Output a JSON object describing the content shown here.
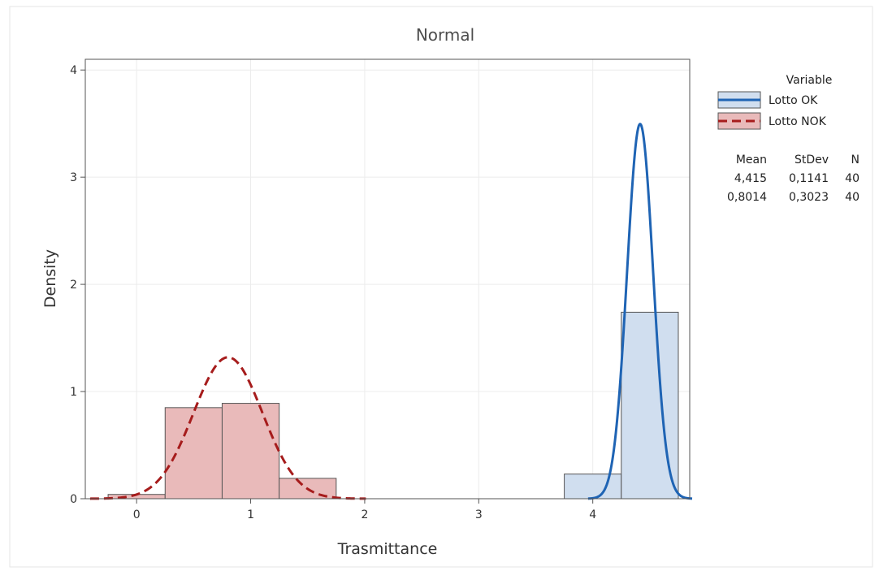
{
  "chart_data": {
    "type": "histogram",
    "title": "Normal",
    "xlabel": "Trasmittance",
    "ylabel": "Density",
    "xlim": [
      -0.45,
      4.85
    ],
    "ylim": [
      0,
      4.1
    ],
    "xticks": [
      0,
      1,
      2,
      3,
      4
    ],
    "yticks": [
      0,
      1,
      2,
      3,
      4
    ],
    "grid": true,
    "legend": {
      "title": "Variable",
      "placement": "right",
      "entries": [
        "Lotto OK",
        "Lotto NOK"
      ]
    },
    "stats_table": {
      "headers": [
        "Mean",
        "StDev",
        "N"
      ],
      "rows": [
        [
          "4,415",
          "0,1141",
          "40"
        ],
        [
          "0,8014",
          "0,3023",
          "40"
        ]
      ]
    },
    "series": [
      {
        "name": "Lotto OK",
        "color": "#1f64b4",
        "fill": "#d0deef",
        "line_style": "solid",
        "mean": 4.415,
        "stdev": 0.1141,
        "n": 40,
        "bins": [
          {
            "x0": 3.75,
            "x1": 4.25,
            "density": 0.23
          },
          {
            "x0": 4.25,
            "x1": 4.75,
            "density": 1.74
          }
        ]
      },
      {
        "name": "Lotto NOK",
        "color": "#a61c1c",
        "fill": "#e9baba",
        "line_style": "dashed",
        "mean": 0.8014,
        "stdev": 0.3023,
        "n": 40,
        "bins": [
          {
            "x0": -0.25,
            "x1": 0.25,
            "density": 0.04
          },
          {
            "x0": 0.25,
            "x1": 0.75,
            "density": 0.85
          },
          {
            "x0": 0.75,
            "x1": 1.25,
            "density": 0.89
          },
          {
            "x0": 1.25,
            "x1": 1.75,
            "density": 0.19
          }
        ]
      }
    ]
  }
}
